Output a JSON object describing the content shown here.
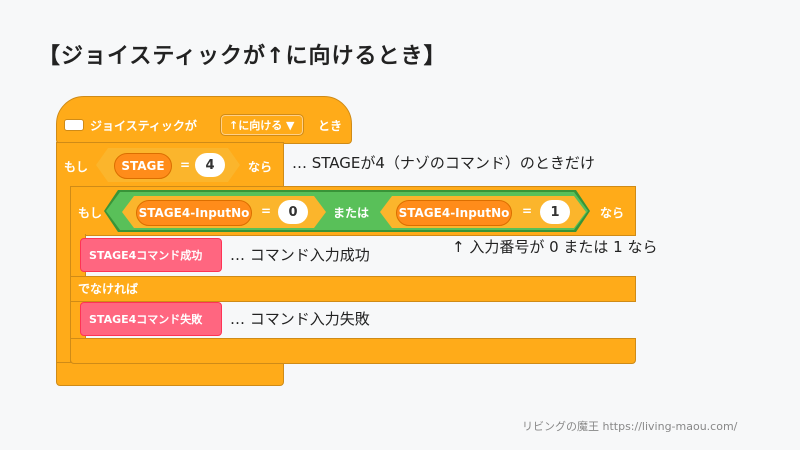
{
  "heading": "【ジョイスティックが↑に向けるとき】",
  "hat_block": {
    "label": "ジョイスティックが",
    "dropdown": "↑に向ける ▼",
    "suffix": "とき"
  },
  "outer_if": {
    "if_label": "もし",
    "variable": "STAGE",
    "operator": "=",
    "value": "4",
    "then_label": "なら"
  },
  "inner_if": {
    "if_label": "もし",
    "left_variable": "STAGE4-InputNo",
    "left_operator": "=",
    "left_value": "0",
    "or_label": "または",
    "right_variable": "STAGE4-InputNo",
    "right_operator": "=",
    "right_value": "1",
    "then_label": "なら",
    "else_label": "でなければ"
  },
  "custom_blocks": {
    "success": "STAGE4コマンド成功",
    "failure": "STAGE4コマンド失敗"
  },
  "annotations": {
    "stage_note": "… STAGEが4（ナゾのコマンド）のときだけ",
    "input_note": "↑  入力番号が  0  または  1  なら",
    "success_note": "…  コマンド入力成功",
    "failure_note": "…  コマンド入力失敗"
  },
  "credit": "リビングの魔王 https://living-maou.com/"
}
